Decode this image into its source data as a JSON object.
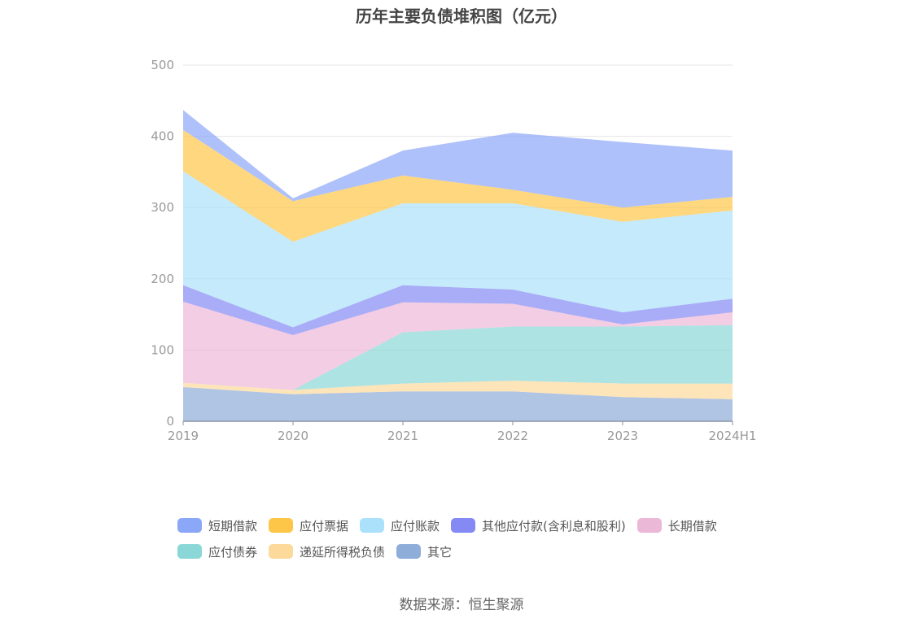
{
  "chart_data": {
    "type": "area",
    "stacked": true,
    "title": "历年主要负债堆积图（亿元）",
    "categories": [
      "2019",
      "2020",
      "2021",
      "2022",
      "2023",
      "2024H1"
    ],
    "ylim": [
      0,
      500
    ],
    "yticks": [
      "0",
      "100",
      "200",
      "300",
      "400",
      "500"
    ],
    "grid": true,
    "legend_position": "bottom",
    "series": [
      {
        "name": "其它",
        "color": "#8fadd9",
        "values": [
          48,
          38,
          42,
          42,
          34,
          31
        ]
      },
      {
        "name": "递延所得税负债",
        "color": "#fdd99b",
        "values": [
          6,
          6,
          11,
          15,
          19,
          22
        ]
      },
      {
        "name": "应付债券",
        "color": "#8bd7d7",
        "values": [
          0,
          0,
          72,
          76,
          80,
          82
        ]
      },
      {
        "name": "长期借款",
        "color": "#ecb8d8",
        "values": [
          114,
          77,
          42,
          32,
          3,
          18
        ]
      },
      {
        "name": "其他应付款(含利息和股利)",
        "color": "#8489f3",
        "values": [
          23,
          11,
          24,
          20,
          17,
          19
        ]
      },
      {
        "name": "应付账款",
        "color": "#abe1fa",
        "values": [
          160,
          120,
          115,
          121,
          127,
          124
        ]
      },
      {
        "name": "应付票据",
        "color": "#fdc649",
        "values": [
          58,
          57,
          39,
          19,
          20,
          19
        ]
      },
      {
        "name": "短期借款",
        "color": "#8ba7f8",
        "values": [
          28,
          4,
          35,
          80,
          92,
          65
        ]
      }
    ]
  },
  "legend": {
    "row1": [
      {
        "label": "短期借款",
        "color": "#8ba7f8"
      },
      {
        "label": "应付票据",
        "color": "#fdc649"
      },
      {
        "label": "应付账款",
        "color": "#abe1fa"
      },
      {
        "label": "其他应付款(含利息和股利)",
        "color": "#8489f3"
      },
      {
        "label": "长期借款",
        "color": "#ecb8d8"
      }
    ],
    "row2": [
      {
        "label": "应付债券",
        "color": "#8bd7d7"
      },
      {
        "label": "递延所得税负债",
        "color": "#fdd99b"
      },
      {
        "label": "其它",
        "color": "#8fadd9"
      }
    ]
  },
  "source": "数据来源：恒生聚源"
}
